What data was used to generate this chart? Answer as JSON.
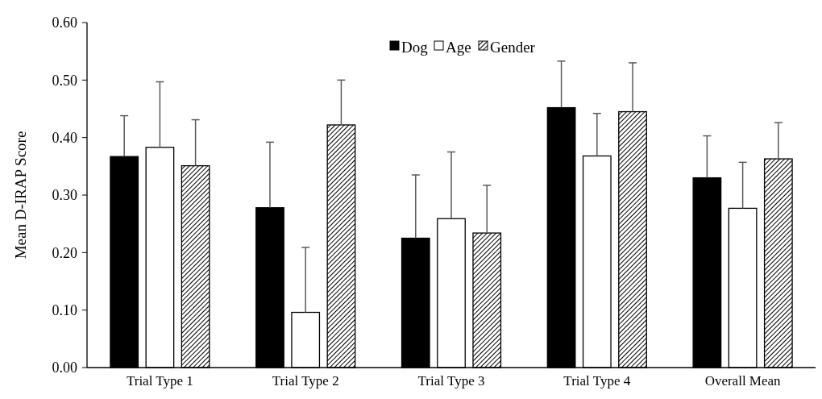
{
  "chart_data": {
    "type": "bar",
    "ylabel": "Mean D-IRAP Score",
    "categories": [
      "Trial Type 1",
      "Trial Type 2",
      "Trial Type 3",
      "Trial Type 4",
      "Overall Mean"
    ],
    "series": [
      {
        "name": "Dog",
        "color": "#000000",
        "values": [
          0.367,
          0.278,
          0.225,
          0.452,
          0.33
        ],
        "errors": [
          [
            0.367,
            0.438
          ],
          [
            0.278,
            0.392
          ],
          [
            0.225,
            0.335
          ],
          [
            0.452,
            0.533
          ],
          [
            0.33,
            0.403
          ]
        ]
      },
      {
        "name": "Age",
        "color": "#ffffff",
        "values": [
          0.383,
          0.096,
          0.259,
          0.368,
          0.277
        ],
        "errors": [
          [
            0.383,
            0.497
          ],
          [
            0.096,
            0.209
          ],
          [
            0.259,
            0.375
          ],
          [
            0.368,
            0.442
          ],
          [
            0.277,
            0.357
          ]
        ]
      },
      {
        "name": "Gender",
        "color": "#000000",
        "values": [
          0.351,
          0.422,
          0.234,
          0.445,
          0.363
        ],
        "errors": [
          [
            0.351,
            0.431
          ],
          [
            0.422,
            0.5
          ],
          [
            0.234,
            0.317
          ],
          [
            0.445,
            0.53
          ],
          [
            0.363,
            0.426
          ]
        ]
      }
    ],
    "ylim": [
      0,
      0.6
    ],
    "yticks": [
      {
        "value": 0,
        "label": "0.00"
      },
      {
        "value": 0.1,
        "label": "0.10"
      },
      {
        "value": 0.2,
        "label": "0.20"
      },
      {
        "value": 0.3,
        "label": "0.30"
      },
      {
        "value": 0.4,
        "label": "0.40"
      },
      {
        "value": 0.5,
        "label": "0.50"
      },
      {
        "value": 0.6,
        "label": "0.60"
      }
    ],
    "grid": false,
    "legend": "top"
  }
}
